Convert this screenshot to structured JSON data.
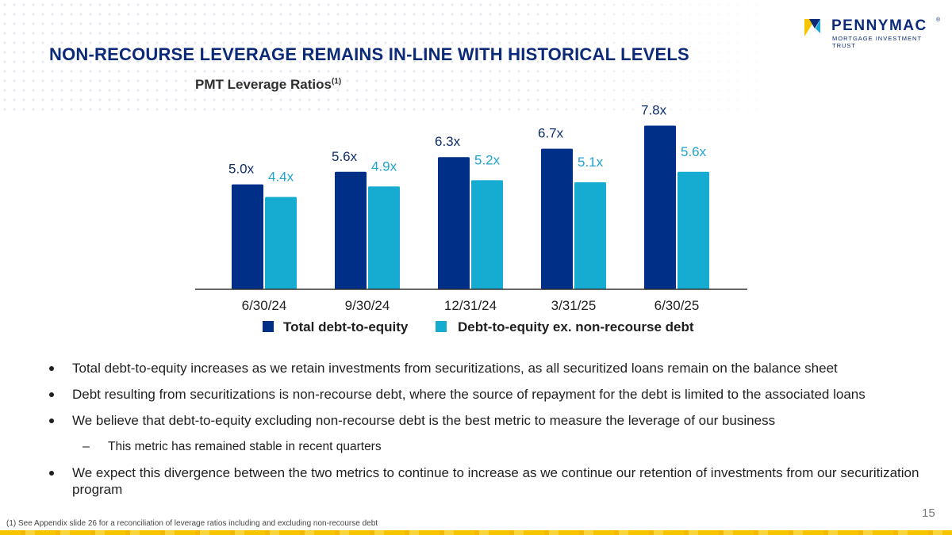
{
  "brand": {
    "name": "PENNYMAC",
    "registered": "®",
    "subtitle": "MORTGAGE INVESTMENT TRUST",
    "logo_colors": [
      "#f7c400",
      "#0b2a78",
      "#1aa9d6"
    ]
  },
  "page_title": "NON-RECOURSE LEVERAGE REMAINS IN-LINE WITH HISTORICAL LEVELS",
  "chart_title": "PMT Leverage Ratios",
  "chart_title_sup": "(1)",
  "chart_data": {
    "type": "bar",
    "title": "PMT Leverage Ratios",
    "categories": [
      "6/30/24",
      "9/30/24",
      "12/31/24",
      "3/31/25",
      "6/30/25"
    ],
    "series": [
      {
        "name": "Total debt-to-equity",
        "color": "#002f87",
        "label_color": "#0d2f6e",
        "values": [
          5.0,
          5.6,
          6.3,
          6.7,
          7.8
        ],
        "labels": [
          "5.0x",
          "5.6x",
          "6.3x",
          "6.7x",
          "7.8x"
        ]
      },
      {
        "name": "Debt-to-equity ex. non-recourse debt",
        "color": "#16abd0",
        "label_color": "#21a3cf",
        "values": [
          4.4,
          4.9,
          5.2,
          5.1,
          5.6
        ],
        "labels": [
          "4.4x",
          "4.9x",
          "5.2x",
          "5.1x",
          "5.6x"
        ]
      }
    ],
    "ylim": [
      0,
      8.5
    ],
    "xlabel": "",
    "ylabel": "",
    "legend_position": "bottom",
    "grid": false
  },
  "bullets": [
    {
      "text": "Total debt-to-equity increases as we retain investments from securitizations, as all securitized loans remain on the balance sheet",
      "sub": false
    },
    {
      "text": "Debt resulting from securitizations is non-recourse debt, where the source of repayment for the debt is limited to the associated loans",
      "sub": false
    },
    {
      "text": "We believe that debt-to-equity excluding non-recourse debt is the best metric to measure the leverage of our business",
      "sub": false
    },
    {
      "text": "This metric has remained stable in recent quarters",
      "sub": true
    },
    {
      "text": "We expect this divergence between the two metrics to continue to increase as we continue our retention of investments from our securitization program",
      "sub": false
    }
  ],
  "page_number": "15",
  "footnote": "(1) See Appendix slide 26 for a reconciliation of leverage ratios including and excluding non-recourse debt"
}
